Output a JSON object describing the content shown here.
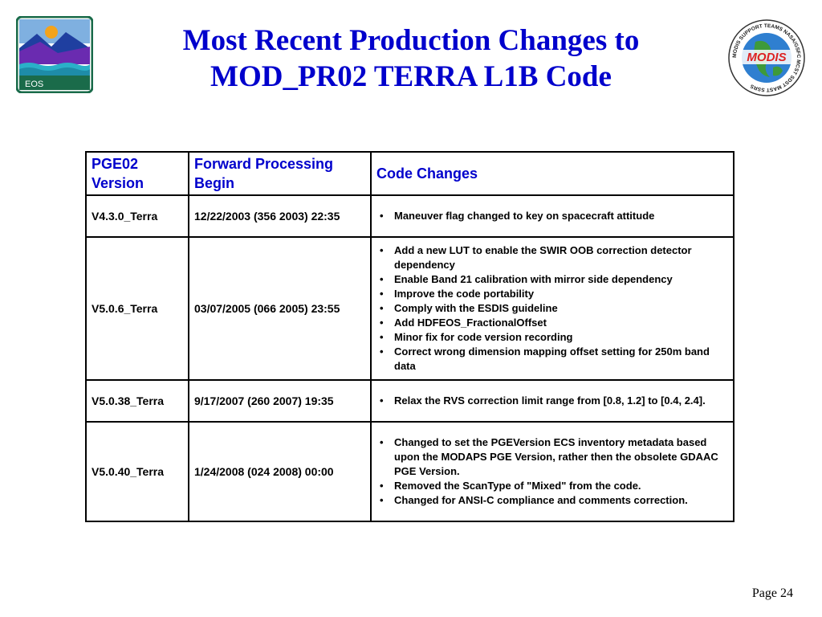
{
  "title": {
    "line1": "Most Recent Production Changes to",
    "line2": "MOD_PR02 TERRA L1B Code"
  },
  "eos_logo": {
    "label": "EOS",
    "icon": "eos-logo-icon"
  },
  "modis_logo": {
    "center_text": "MODIS",
    "ring_text": "MODIS SUPPORT TEAMS NASA/GSFC MCST SDST MAST SSRS",
    "icon": "modis-logo-icon"
  },
  "table": {
    "headers": {
      "version": "PGE02 Version",
      "begin": "Forward Processing Begin",
      "changes": "Code Changes"
    },
    "rows": [
      {
        "version": "V4.3.0_Terra",
        "begin": "12/22/2003 (356 2003) 22:35",
        "changes": [
          "Maneuver flag changed to key on spacecraft attitude"
        ]
      },
      {
        "version": "V5.0.6_Terra",
        "begin": "03/07/2005 (066 2005) 23:55",
        "changes": [
          "Add a new LUT to enable the SWIR OOB correction detector  dependency",
          "Enable Band 21 calibration with mirror side dependency",
          "Improve the code  portability",
          "Comply with  the ESDIS guideline",
          "Add HDFEOS_FractionalOffset",
          "Minor fix for code version recording",
          "Correct wrong dimension mapping offset setting for 250m band data"
        ]
      },
      {
        "version": "V5.0.38_Terra",
        "begin": "9/17/2007 (260 2007) 19:35",
        "changes": [
          "Relax the RVS correction limit range from [0.8, 1.2] to [0.4, 2.4]."
        ]
      },
      {
        "version": "V5.0.40_Terra",
        "begin": "1/24/2008 (024 2008) 00:00",
        "changes": [
          "Changed to set the PGEVersion ECS inventory metadata based upon the MODAPS PGE Version, rather then the obsolete GDAAC PGE Version.",
          "Removed the ScanType of \"Mixed\" from the code.",
          "Changed for ANSI-C compliance and comments correction."
        ]
      }
    ]
  },
  "footer": {
    "page": "Page 24"
  }
}
